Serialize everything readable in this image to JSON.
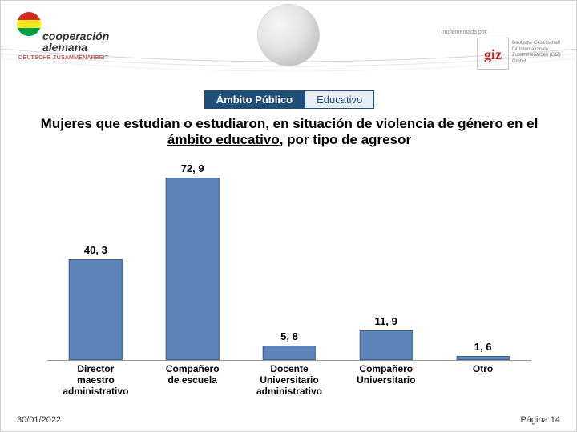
{
  "header": {
    "logo_left": {
      "line1": "cooperación",
      "line2": "alemana",
      "sub": "DEUTSCHE ZUSAMMENARBEIT",
      "flag_colors": [
        "#d52b1e",
        "#f8e71c",
        "#009e49"
      ],
      "text_color": "#333333",
      "sub_color": "#b11c1c"
    },
    "implemented_by": "Implementada por:",
    "logo_right": {
      "brand": "giz",
      "line1": "Deutsche Gesellschaft",
      "line2": "für Internationale",
      "line3": "Zusammenarbeit (GIZ) GmbH",
      "brand_color": "#b11c1c"
    },
    "arc_colors": {
      "top": "#d6d6d6",
      "mid": "#e6e6e6",
      "bot": "#f1f1f1"
    }
  },
  "tags": {
    "primary": "Ámbito Público",
    "secondary": "Educativo",
    "primary_bg": "#1f4e79",
    "secondary_bg": "#e8eef5",
    "border": "#1f4e79"
  },
  "title": {
    "pre": "Mujeres que estudian o estudiaron, en situación de violencia  de género en el ",
    "underline": "ámbito educativo",
    "post": ", por tipo de agresor",
    "fontsize": 17
  },
  "chart": {
    "type": "bar",
    "ylim": [
      0,
      80
    ],
    "bar_color": "#5b85b9",
    "bar_border": "#3d6192",
    "bar_width_ratio": 0.55,
    "axis_color": "#999999",
    "label_fontsize": 13,
    "category_fontsize": 12,
    "categories": [
      "Director\nmaestro\nadministrativo",
      "Compañero\nde escuela",
      "Docente\nUniversitario\nadministrativo",
      "Compañero\nUniversitario",
      "Otro"
    ],
    "values": [
      40.3,
      72.9,
      5.8,
      11.9,
      1.6
    ],
    "value_labels": [
      "40, 3",
      "72, 9",
      "5, 8",
      "11, 9",
      "1, 6"
    ]
  },
  "footer": {
    "date": "30/01/2022",
    "page": "Página 14"
  },
  "background_color": "#ffffff"
}
